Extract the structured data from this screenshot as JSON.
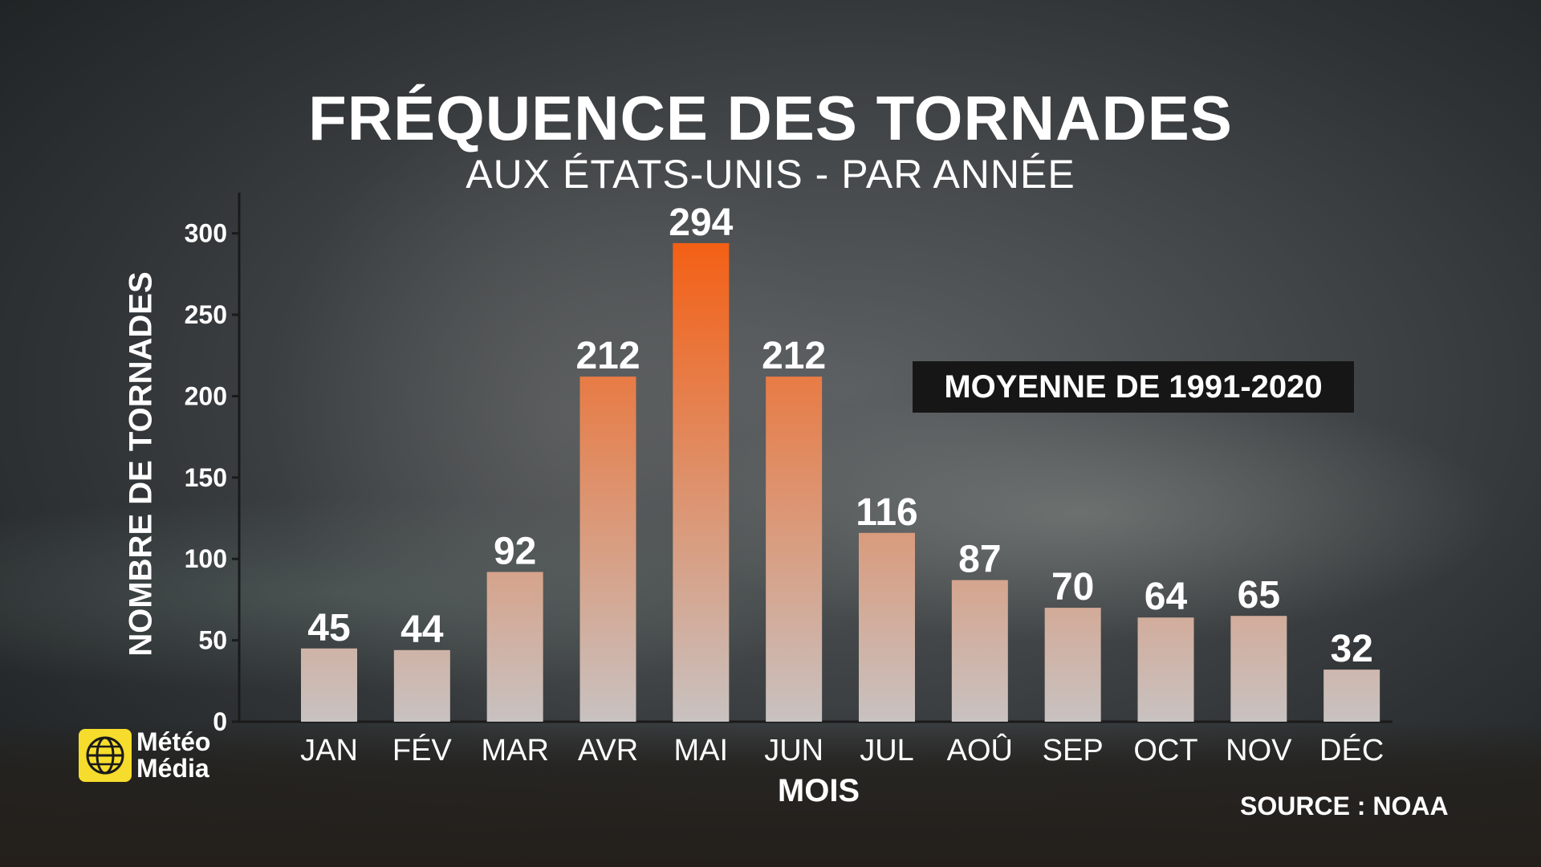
{
  "chart_data": {
    "type": "bar",
    "title": "FRÉQUENCE DES TORNADES",
    "subtitle": "AUX ÉTATS-UNIS - PAR ANNÉE",
    "xlabel": "MOIS",
    "ylabel": "NOMBRE DE TORNADES",
    "categories": [
      "JAN",
      "FÉV",
      "MAR",
      "AVR",
      "MAI",
      "JUN",
      "JUL",
      "AOÛ",
      "SEP",
      "OCT",
      "NOV",
      "DÉC"
    ],
    "values": [
      45,
      44,
      92,
      212,
      294,
      212,
      116,
      87,
      70,
      64,
      65,
      32
    ],
    "yticks": [
      0,
      50,
      100,
      150,
      200,
      250,
      300
    ],
    "ylim": [
      0,
      325
    ],
    "annotation": "MOYENNE DE 1991-2020",
    "grid": false,
    "bar_gradient": {
      "low_color": "#c8c2c1",
      "high_color": "#f45f14"
    }
  },
  "source": "SOURCE : NOAA",
  "logo": {
    "line1": "Météo",
    "line2": "Média",
    "icon": "globe-icon",
    "icon_color": "#f6dc2c"
  }
}
